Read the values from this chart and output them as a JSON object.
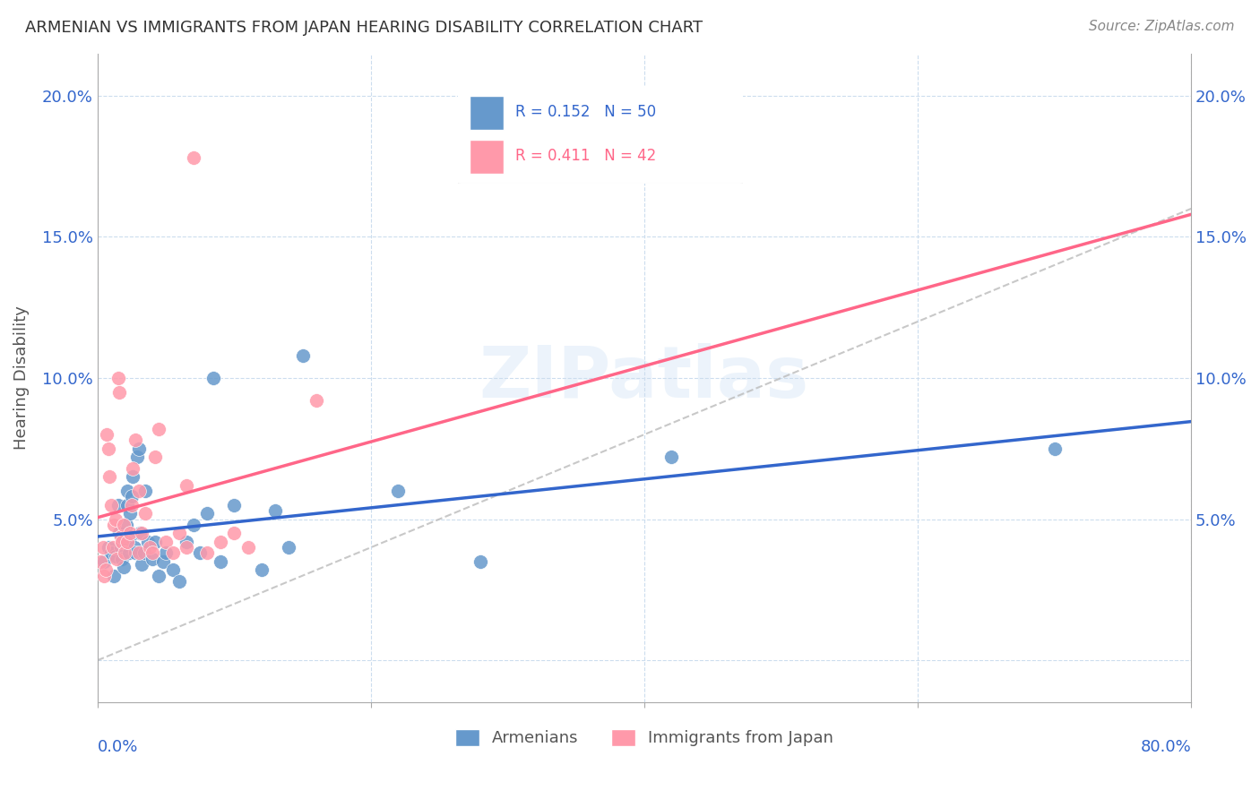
{
  "title": "ARMENIAN VS IMMIGRANTS FROM JAPAN HEARING DISABILITY CORRELATION CHART",
  "source": "Source: ZipAtlas.com",
  "ylabel": "Hearing Disability",
  "yticks": [
    0.0,
    0.05,
    0.1,
    0.15,
    0.2
  ],
  "ytick_labels": [
    "",
    "5.0%",
    "10.0%",
    "15.0%",
    "20.0%"
  ],
  "xmin": 0.0,
  "xmax": 0.8,
  "ymin": -0.015,
  "ymax": 0.215,
  "label_armenians": "Armenians",
  "label_japan": "Immigrants from Japan",
  "color_blue": "#6699CC",
  "color_pink": "#FF99AA",
  "color_blue_line": "#3366CC",
  "color_pink_line": "#FF6688",
  "color_dashed": "#BBBBBB",
  "watermark": "ZIPatlas",
  "armenians_x": [
    0.005,
    0.008,
    0.01,
    0.012,
    0.013,
    0.015,
    0.016,
    0.017,
    0.018,
    0.019,
    0.02,
    0.021,
    0.022,
    0.022,
    0.023,
    0.024,
    0.024,
    0.025,
    0.026,
    0.027,
    0.028,
    0.029,
    0.03,
    0.031,
    0.032,
    0.034,
    0.035,
    0.037,
    0.04,
    0.042,
    0.045,
    0.048,
    0.05,
    0.055,
    0.06,
    0.065,
    0.07,
    0.075,
    0.08,
    0.085,
    0.09,
    0.1,
    0.12,
    0.13,
    0.14,
    0.15,
    0.22,
    0.28,
    0.42,
    0.7
  ],
  "armenians_y": [
    0.035,
    0.04,
    0.038,
    0.03,
    0.037,
    0.055,
    0.045,
    0.04,
    0.036,
    0.033,
    0.042,
    0.048,
    0.055,
    0.06,
    0.038,
    0.052,
    0.044,
    0.058,
    0.065,
    0.04,
    0.038,
    0.072,
    0.075,
    0.045,
    0.034,
    0.038,
    0.06,
    0.042,
    0.036,
    0.042,
    0.03,
    0.035,
    0.038,
    0.032,
    0.028,
    0.042,
    0.048,
    0.038,
    0.052,
    0.1,
    0.035,
    0.055,
    0.032,
    0.053,
    0.04,
    0.108,
    0.06,
    0.035,
    0.072,
    0.075
  ],
  "japan_x": [
    0.002,
    0.004,
    0.005,
    0.006,
    0.007,
    0.008,
    0.009,
    0.01,
    0.011,
    0.012,
    0.013,
    0.014,
    0.015,
    0.016,
    0.017,
    0.018,
    0.019,
    0.02,
    0.022,
    0.024,
    0.025,
    0.026,
    0.028,
    0.03,
    0.032,
    0.035,
    0.038,
    0.04,
    0.042,
    0.045,
    0.05,
    0.055,
    0.06,
    0.065,
    0.07,
    0.08,
    0.09,
    0.1,
    0.11,
    0.16,
    0.065,
    0.03
  ],
  "japan_y": [
    0.035,
    0.04,
    0.03,
    0.032,
    0.08,
    0.075,
    0.065,
    0.055,
    0.04,
    0.048,
    0.05,
    0.036,
    0.1,
    0.095,
    0.044,
    0.042,
    0.048,
    0.038,
    0.042,
    0.045,
    0.055,
    0.068,
    0.078,
    0.038,
    0.045,
    0.052,
    0.04,
    0.038,
    0.072,
    0.082,
    0.042,
    0.038,
    0.045,
    0.04,
    0.178,
    0.038,
    0.042,
    0.045,
    0.04,
    0.092,
    0.062,
    0.06
  ]
}
